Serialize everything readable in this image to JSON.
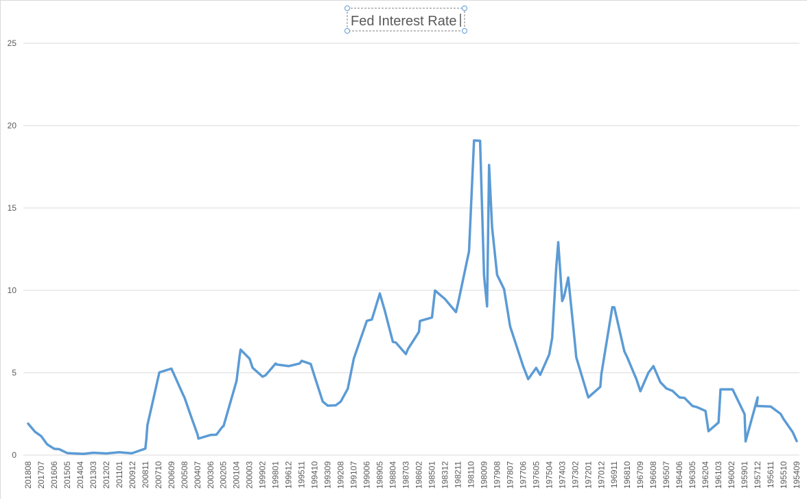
{
  "chart_data": {
    "type": "line",
    "title": "Fed Interest Rate",
    "xlabel": "",
    "ylabel": "",
    "ylim": [
      0,
      25
    ],
    "yticks": [
      0,
      5,
      10,
      15,
      20,
      25
    ],
    "grid": "horizontal",
    "legend": "none",
    "x_order": "descending",
    "xtick_labels": [
      "201808",
      "201707",
      "201606",
      "201505",
      "201404",
      "201303",
      "201202",
      "201101",
      "200912",
      "200811",
      "200710",
      "200609",
      "200508",
      "200407",
      "200306",
      "200205",
      "200104",
      "200003",
      "199902",
      "199801",
      "199612",
      "199511",
      "199410",
      "199309",
      "199208",
      "199107",
      "199006",
      "198905",
      "198804",
      "198703",
      "198602",
      "198501",
      "198312",
      "198211",
      "198110",
      "198009",
      "197908",
      "197807",
      "197706",
      "197605",
      "197504",
      "197403",
      "197302",
      "197201",
      "197012",
      "196911",
      "196810",
      "196709",
      "196608",
      "196507",
      "196406",
      "196305",
      "196204",
      "196103",
      "196002",
      "195901",
      "195712",
      "195611",
      "195510",
      "195409"
    ],
    "series": [
      {
        "color": "#5B9BD5",
        "x": [
          "201808",
          "201801",
          "201707",
          "201701",
          "201606",
          "201601",
          "201505",
          "201401",
          "201303",
          "201202",
          "201101",
          "201001",
          "200912",
          "200811",
          "200810",
          "200809",
          "200801",
          "200710",
          "200709",
          "200609",
          "200509",
          "200508",
          "200501",
          "200407",
          "200406",
          "200306",
          "200212",
          "200206",
          "200205",
          "200104",
          "200101",
          "200012",
          "200003",
          "199912",
          "199902",
          "199811",
          "199801",
          "199712",
          "199612",
          "199601",
          "199511",
          "199502",
          "199410",
          "199402",
          "199309",
          "199301",
          "199208",
          "199201",
          "199107",
          "199101",
          "199006",
          "199001",
          "198905",
          "198812",
          "198804",
          "198801",
          "198703",
          "198701",
          "198602",
          "198601",
          "198501",
          "198410",
          "198312",
          "198301",
          "198211",
          "198112",
          "198110",
          "198107",
          "198101",
          "198009",
          "198006",
          "198004",
          "198001",
          "197908",
          "197901",
          "197807",
          "197801",
          "197706",
          "197701",
          "197605",
          "197601",
          "197504",
          "197501",
          "197409",
          "197407",
          "197403",
          "197401",
          "197309",
          "197302",
          "197301",
          "197201",
          "197101",
          "197012",
          "197001",
          "196911",
          "196901",
          "196810",
          "196801",
          "196709",
          "196701",
          "196608",
          "196601",
          "196507",
          "196501",
          "196406",
          "196401",
          "196305",
          "196301",
          "196204",
          "196201",
          "196103",
          "196101",
          "196002",
          "196001",
          "195901",
          "195812",
          "195712",
          "195801",
          "195611",
          "195601",
          "195510",
          "195501",
          "195409"
        ],
        "values": [
          1.91,
          1.41,
          1.15,
          0.65,
          0.38,
          0.36,
          0.12,
          0.07,
          0.14,
          0.1,
          0.17,
          0.11,
          0.12,
          0.39,
          0.97,
          1.81,
          3.94,
          4.76,
          5.02,
          5.25,
          3.62,
          3.5,
          2.28,
          1.26,
          1.0,
          1.22,
          1.24,
          1.73,
          1.75,
          4.5,
          5.98,
          6.4,
          5.85,
          5.3,
          4.76,
          4.85,
          5.56,
          5.5,
          5.4,
          5.56,
          5.72,
          5.53,
          4.76,
          3.25,
          3.0,
          3.02,
          3.25,
          4.03,
          5.86,
          6.91,
          8.15,
          8.23,
          9.81,
          8.76,
          6.87,
          6.83,
          6.13,
          6.43,
          7.48,
          8.14,
          8.35,
          9.99,
          9.47,
          8.68,
          9.2,
          12.37,
          15.08,
          19.1,
          19.08,
          10.87,
          9.03,
          17.61,
          13.82,
          10.94,
          10.07,
          7.81,
          6.7,
          5.39,
          4.61,
          5.29,
          4.87,
          6.1,
          7.13,
          11.34,
          12.92,
          9.35,
          9.65,
          10.78,
          6.58,
          5.94,
          3.5,
          4.14,
          4.9,
          8.98,
          8.97,
          6.3,
          5.92,
          4.61,
          3.88,
          5.0,
          5.4,
          4.42,
          4.04,
          3.9,
          3.5,
          3.47,
          2.98,
          2.92,
          2.68,
          1.45,
          1.98,
          3.99,
          3.99,
          3.99,
          2.48,
          0.83,
          3.5,
          2.98,
          2.95,
          2.5,
          2.18,
          1.39,
          0.85
        ]
      }
    ]
  }
}
